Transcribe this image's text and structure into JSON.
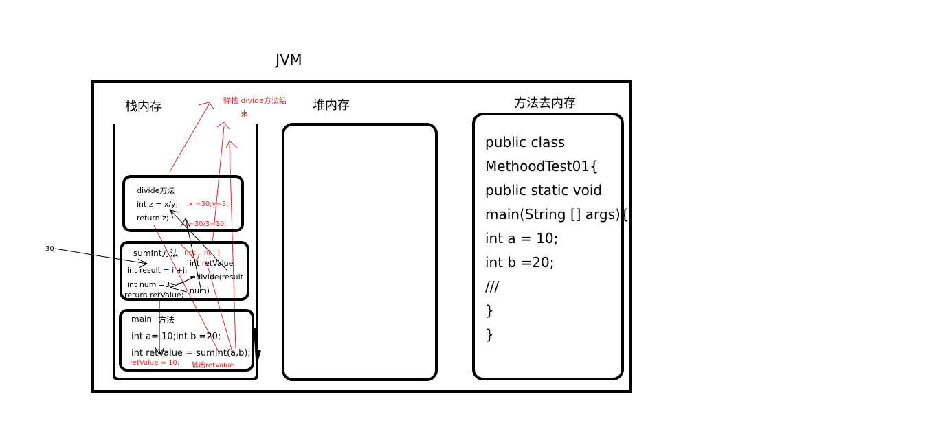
{
  "title": "JVM",
  "stack": {
    "label": "栈内存",
    "divide": {
      "title": "divide方法",
      "line1": "int z = x/y;",
      "line2": "return z;",
      "note1": "x =30;y=3;",
      "note2": "z=30/3=10;"
    },
    "sumInt": {
      "title": "sumInt方法",
      "params": "(int i,int j )",
      "line1": "int result = i +j;",
      "line2": "int num =3;",
      "line3": "return retValue;",
      "call1": "int retValue",
      "call2": "=divide(result",
      "call3": "num)"
    },
    "main": {
      "title": "main",
      "title2": "方法",
      "line1": "int a= 10;int b =20;",
      "line2": "int retValue = sumInt(a,b);",
      "note1": "retValue = 10;",
      "note2": "输出retValue"
    },
    "pop_note_1": "弹栈 divide方法结",
    "pop_note_2": "束",
    "arg_label": "30"
  },
  "heap": {
    "label": "堆内存"
  },
  "method_area": {
    "label": "方法去内存",
    "code": [
      "public class",
      "MethoodTest01{",
      "public static void",
      "main(String [] args){",
      "int a = 10;",
      "int b =20;",
      "///",
      "}",
      "}"
    ]
  },
  "colors": {
    "ink": "#000000",
    "annotation": "#e0262a"
  }
}
